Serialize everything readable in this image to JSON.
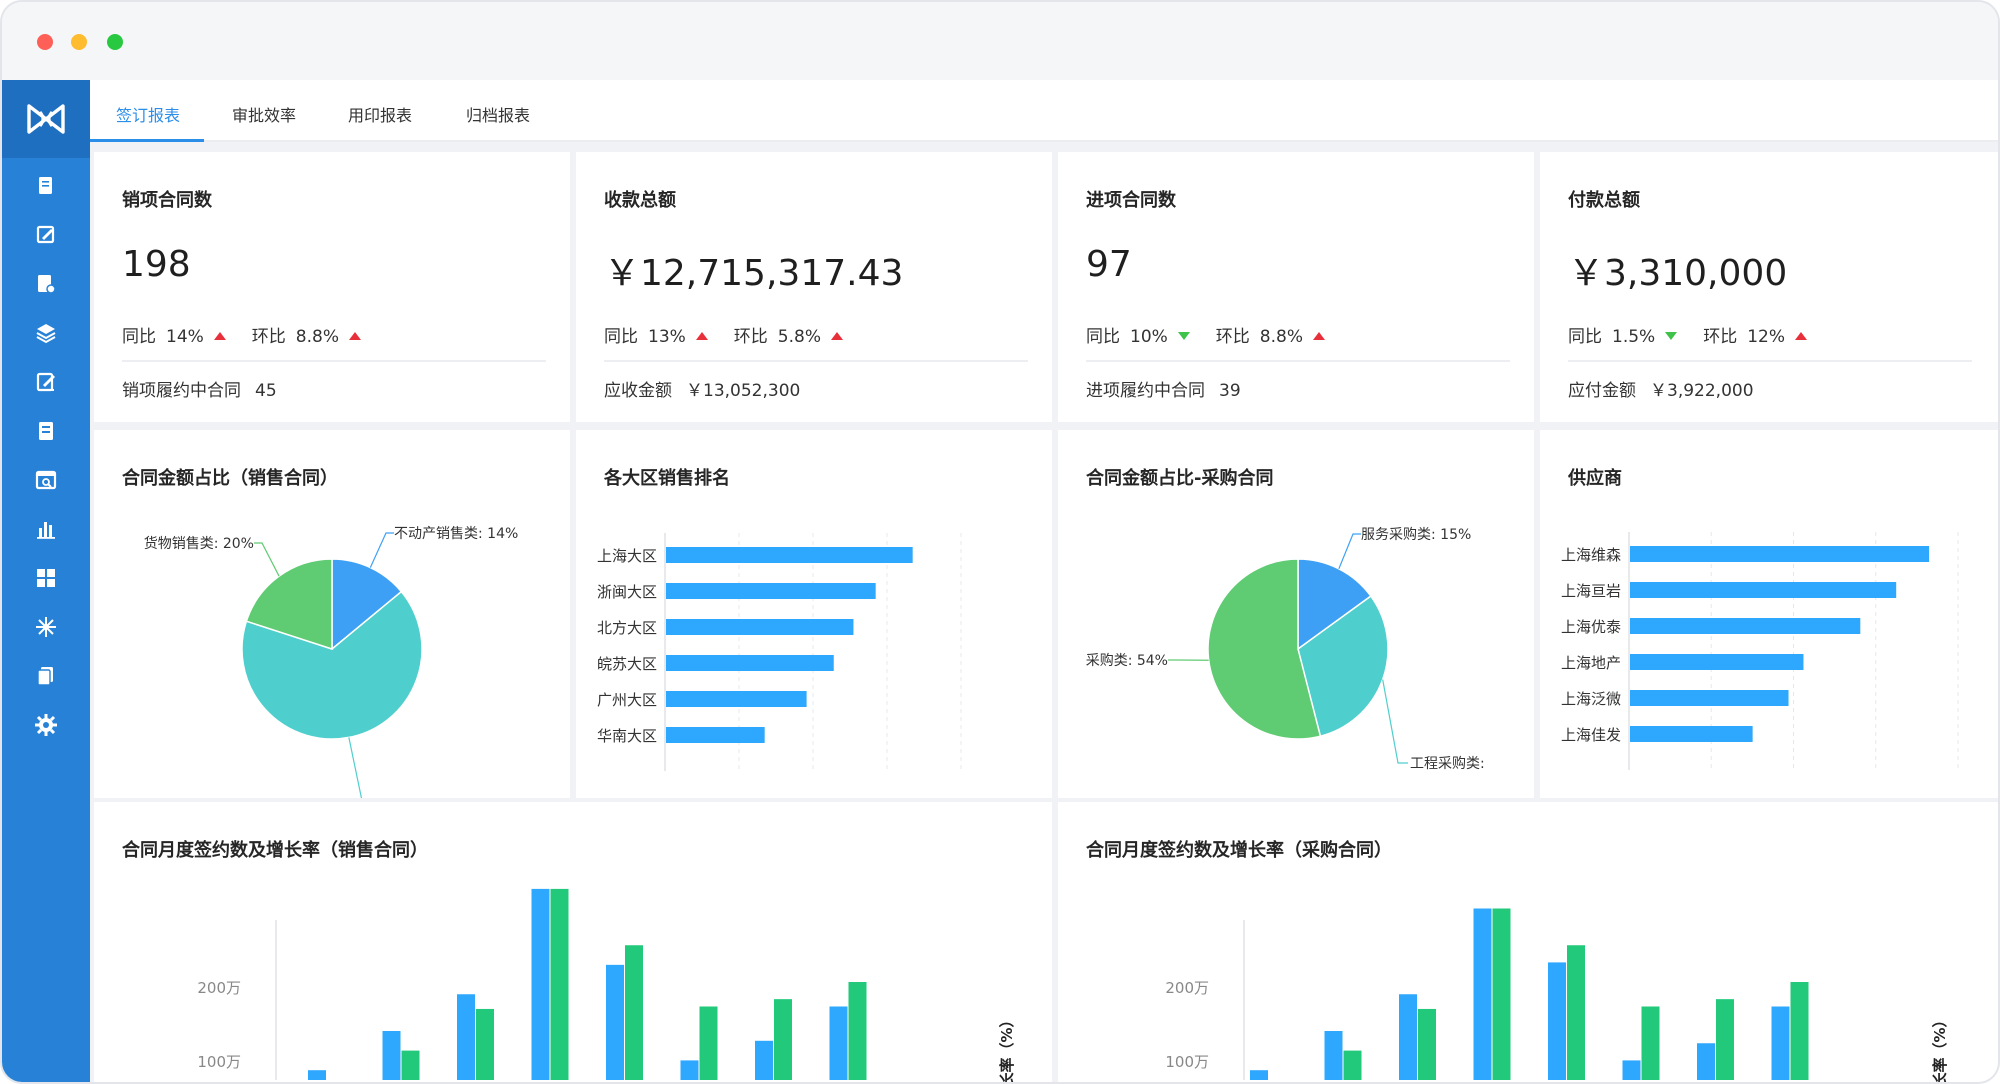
{
  "tabs": [
    "签订报表",
    "审批效率",
    "用印报表",
    "归档报表"
  ],
  "kpis": [
    {
      "title": "销项合同数",
      "value": "198",
      "yoy_label": "同比",
      "yoy": "14%",
      "yoy_dir": "up",
      "mom_label": "环比",
      "mom": "8.8%",
      "mom_dir": "up",
      "footer_label": "销项履约中合同",
      "footer_value": "45"
    },
    {
      "title": "收款总额",
      "value": "￥12,715,317.43",
      "yoy_label": "同比",
      "yoy": "13%",
      "yoy_dir": "up",
      "mom_label": "环比",
      "mom": "5.8%",
      "mom_dir": "up",
      "footer_label": "应收金额",
      "footer_value": "￥13,052,300"
    },
    {
      "title": "进项合同数",
      "value": "97",
      "yoy_label": "同比",
      "yoy": "10%",
      "yoy_dir": "down",
      "mom_label": "环比",
      "mom": "8.8%",
      "mom_dir": "up",
      "footer_label": "进项履约中合同",
      "footer_value": "39"
    },
    {
      "title": "付款总额",
      "value": "￥3,310,000",
      "yoy_label": "同比",
      "yoy": "1.5%",
      "yoy_dir": "down",
      "mom_label": "环比",
      "mom": "12%",
      "mom_dir": "up",
      "footer_label": "应付金额",
      "footer_value": "￥3,922,000"
    }
  ],
  "colors": {
    "accent": "#2b8ee8",
    "sidebar": "#2782d7",
    "bar_blue": "#2ea7ff",
    "bar_green": "#22c97a",
    "pie_blue": "#3ea0f5",
    "pie_teal": "#4ecfcd",
    "pie_green": "#5fcb72",
    "up": "#e8303a",
    "down": "#3ec24a"
  },
  "sidebar_icons": [
    "document-icon",
    "edit-icon",
    "file-settings-icon",
    "layers-icon",
    "sign-icon",
    "book-icon",
    "search-doc-icon",
    "bar-chart-icon",
    "grid-icon",
    "snowflake-icon",
    "copy-icon",
    "gear-icon"
  ],
  "chart_data": [
    {
      "type": "pie",
      "title": "合同金额占比（销售合同）",
      "slices": [
        {
          "label": "不动产销售类: 14%",
          "value": 14
        },
        {
          "label": "服务销售类:",
          "value": 66
        },
        {
          "label": "货物销售类: 20%",
          "value": 20
        }
      ]
    },
    {
      "type": "bar",
      "orientation": "horizontal",
      "title": "各大区销售排名",
      "categories": [
        "上海大区",
        "浙闽大区",
        "北方大区",
        "皖苏大区",
        "广州大区",
        "华南大区"
      ],
      "values": [
        100,
        85,
        76,
        68,
        57,
        40
      ],
      "xlim": [
        0,
        120
      ]
    },
    {
      "type": "pie",
      "title": "合同金额占比-采购合同",
      "slices": [
        {
          "label": "服务采购类: 15%",
          "value": 15
        },
        {
          "label": "工程采购类:",
          "value": 31
        },
        {
          "label": "采购类: 54%",
          "value": 54
        }
      ]
    },
    {
      "type": "bar",
      "orientation": "horizontal",
      "title": "供应商",
      "categories": [
        "上海维森",
        "上海亘岩",
        "上海优泰",
        "上海地产",
        "上海泛微",
        "上海佳发"
      ],
      "values": [
        100,
        89,
        77,
        58,
        53,
        41
      ],
      "xlim": [
        0,
        110
      ]
    },
    {
      "type": "bar",
      "title": "合同月度签约数及增长率（销售合同）",
      "ylabel": "长率（%）",
      "yticks": [
        "100万",
        "200万"
      ],
      "ylim": [
        0,
        400
      ],
      "series": [
        {
          "values": [
            20,
            100,
            175,
            390,
            235,
            40,
            80,
            150
          ]
        },
        {
          "values": [
            0,
            60,
            145,
            390,
            275,
            150,
            165,
            200
          ]
        }
      ]
    },
    {
      "type": "bar",
      "title": "合同月度签约数及增长率（采购合同）",
      "ylabel": "长率（%）",
      "yticks": [
        "100万",
        "200万"
      ],
      "ylim": [
        0,
        400
      ],
      "series": [
        {
          "values": [
            20,
            100,
            175,
            350,
            240,
            40,
            75,
            150
          ]
        },
        {
          "values": [
            0,
            60,
            145,
            350,
            275,
            150,
            165,
            200
          ]
        }
      ]
    }
  ]
}
